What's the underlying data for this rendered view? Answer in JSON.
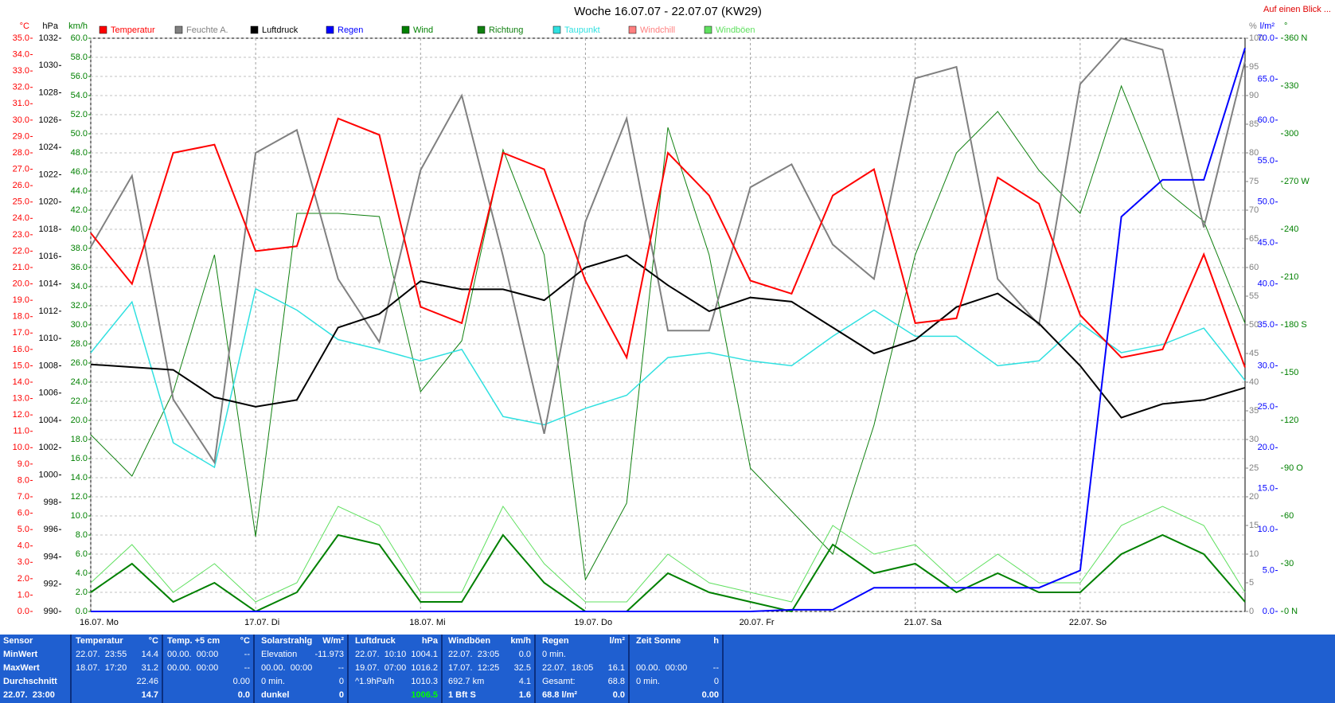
{
  "chart_data": {
    "type": "line",
    "title": "Woche 16.07.07 - 22.07.07 (KW29)",
    "link": "Auf einen Blick ...",
    "xlim": [
      0,
      168
    ],
    "xticks": [
      {
        "value": 0,
        "label": "16.07. Mo"
      },
      {
        "value": 24,
        "label": "17.07. Di"
      },
      {
        "value": 48,
        "label": "18.07. Mi"
      },
      {
        "value": 72,
        "label": "19.07. Do"
      },
      {
        "value": 96,
        "label": "20.07. Fr"
      },
      {
        "value": 120,
        "label": "21.07. Sa"
      },
      {
        "value": 144,
        "label": "22.07. So"
      }
    ],
    "x": [
      0,
      6,
      12,
      18,
      24,
      30,
      36,
      42,
      48,
      54,
      60,
      66,
      72,
      78,
      84,
      90,
      96,
      102,
      108,
      114,
      120,
      126,
      132,
      138,
      144,
      150,
      156,
      162,
      168
    ],
    "grid": true,
    "axes": [
      {
        "unit": "°C",
        "color": "#ff0000",
        "lim": [
          0,
          35
        ],
        "ticks": [
          {
            "value": 0,
            "label": "0.0"
          },
          {
            "value": 1,
            "label": "1.0"
          },
          {
            "value": 2,
            "label": "2.0"
          },
          {
            "value": 3,
            "label": "3.0"
          },
          {
            "value": 4,
            "label": "4.0"
          },
          {
            "value": 5,
            "label": "5.0"
          },
          {
            "value": 6,
            "label": "6.0"
          },
          {
            "value": 7,
            "label": "7.0"
          },
          {
            "value": 8,
            "label": "8.0"
          },
          {
            "value": 9,
            "label": "9.0"
          },
          {
            "value": 10,
            "label": "10.0"
          },
          {
            "value": 11,
            "label": "11.0"
          },
          {
            "value": 12,
            "label": "12.0"
          },
          {
            "value": 13,
            "label": "13.0"
          },
          {
            "value": 14,
            "label": "14.0"
          },
          {
            "value": 15,
            "label": "15.0"
          },
          {
            "value": 16,
            "label": "16.0"
          },
          {
            "value": 17,
            "label": "17.0"
          },
          {
            "value": 18,
            "label": "18.0"
          },
          {
            "value": 19,
            "label": "19.0"
          },
          {
            "value": 20,
            "label": "20.0"
          },
          {
            "value": 21,
            "label": "21.0"
          },
          {
            "value": 22,
            "label": "22.0"
          },
          {
            "value": 23,
            "label": "23.0"
          },
          {
            "value": 24,
            "label": "24.0"
          },
          {
            "value": 25,
            "label": "25.0"
          },
          {
            "value": 26,
            "label": "26.0"
          },
          {
            "value": 27,
            "label": "27.0"
          },
          {
            "value": 28,
            "label": "28.0"
          },
          {
            "value": 29,
            "label": "29.0"
          },
          {
            "value": 30,
            "label": "30.0"
          },
          {
            "value": 31,
            "label": "31.0"
          },
          {
            "value": 32,
            "label": "32.0"
          },
          {
            "value": 33,
            "label": "33.0"
          },
          {
            "value": 34,
            "label": "34.0"
          },
          {
            "value": 35,
            "label": "35.0"
          }
        ]
      },
      {
        "unit": "hPa",
        "color": "#000000",
        "lim": [
          990,
          1032
        ],
        "ticks": [
          990,
          992,
          994,
          996,
          998,
          1000,
          1002,
          1004,
          1006,
          1008,
          1010,
          1012,
          1014,
          1016,
          1018,
          1020,
          1022,
          1024,
          1026,
          1028,
          1030,
          1032
        ]
      },
      {
        "unit": "km/h",
        "color": "#008000",
        "lim": [
          0,
          60
        ],
        "ticks": [
          {
            "value": 0,
            "label": "0.0"
          },
          {
            "value": 2,
            "label": "2.0"
          },
          {
            "value": 4,
            "label": "4.0"
          },
          {
            "value": 6,
            "label": "6.0"
          },
          {
            "value": 8,
            "label": "8.0"
          },
          {
            "value": 10,
            "label": "10.0"
          },
          {
            "value": 12,
            "label": "12.0"
          },
          {
            "value": 14,
            "label": "14.0"
          },
          {
            "value": 16,
            "label": "16.0"
          },
          {
            "value": 18,
            "label": "18.0"
          },
          {
            "value": 20,
            "label": "20.0"
          },
          {
            "value": 22,
            "label": "22.0"
          },
          {
            "value": 24,
            "label": "24.0"
          },
          {
            "value": 26,
            "label": "26.0"
          },
          {
            "value": 28,
            "label": "28.0"
          },
          {
            "value": 30,
            "label": "30.0"
          },
          {
            "value": 32,
            "label": "32.0"
          },
          {
            "value": 34,
            "label": "34.0"
          },
          {
            "value": 36,
            "label": "36.0"
          },
          {
            "value": 38,
            "label": "38.0"
          },
          {
            "value": 40,
            "label": "40.0"
          },
          {
            "value": 42,
            "label": "42.0"
          },
          {
            "value": 44,
            "label": "44.0"
          },
          {
            "value": 46,
            "label": "46.0"
          },
          {
            "value": 48,
            "label": "48.0"
          },
          {
            "value": 50,
            "label": "50.0"
          },
          {
            "value": 52,
            "label": "52.0"
          },
          {
            "value": 54,
            "label": "54.0"
          },
          {
            "value": 56,
            "label": "56.0"
          },
          {
            "value": 58,
            "label": "58.0"
          },
          {
            "value": 60,
            "label": "60.0"
          }
        ]
      },
      {
        "unit": "%",
        "color": "#808080",
        "lim": [
          0,
          100
        ],
        "ticks": [
          0,
          5,
          10,
          15,
          20,
          25,
          30,
          35,
          40,
          45,
          50,
          55,
          60,
          65,
          70,
          75,
          80,
          85,
          90,
          95,
          100
        ]
      },
      {
        "unit": "l/m²",
        "color": "#0000ff",
        "lim": [
          0,
          70
        ],
        "ticks": [
          {
            "value": 0,
            "label": "0.0"
          },
          {
            "value": 5,
            "label": "5.0"
          },
          {
            "value": 10,
            "label": "10.0"
          },
          {
            "value": 15,
            "label": "15.0"
          },
          {
            "value": 20,
            "label": "20.0"
          },
          {
            "value": 25,
            "label": "25.0"
          },
          {
            "value": 30,
            "label": "30.0"
          },
          {
            "value": 35,
            "label": "35.0"
          },
          {
            "value": 40,
            "label": "40.0"
          },
          {
            "value": 45,
            "label": "45.0"
          },
          {
            "value": 50,
            "label": "50.0"
          },
          {
            "value": 55,
            "label": "55.0"
          },
          {
            "value": 60,
            "label": "60.0"
          },
          {
            "value": 65,
            "label": "65.0"
          },
          {
            "value": 70,
            "label": "70.0"
          }
        ]
      },
      {
        "unit": "°",
        "color": "#008000",
        "lim": [
          0,
          360
        ],
        "ticks": [
          {
            "value": 0,
            "label": "0 N"
          },
          30,
          60,
          {
            "value": 90,
            "label": "90 O"
          },
          120,
          150,
          {
            "value": 180,
            "label": "180 S"
          },
          210,
          240,
          {
            "value": 270,
            "label": "270 W"
          },
          300,
          330,
          {
            "value": 360,
            "label": "360 N"
          }
        ]
      }
    ],
    "series": [
      {
        "name": "Temperatur",
        "color": "#ff0000",
        "axis": 0,
        "width": 2,
        "values": [
          23.1,
          20.0,
          28.0,
          28.5,
          22.0,
          22.3,
          30.1,
          29.1,
          18.6,
          17.6,
          28.0,
          27.0,
          20.2,
          15.5,
          28.0,
          25.4,
          20.2,
          19.4,
          25.4,
          27.0,
          17.6,
          17.9,
          26.5,
          24.9,
          18.1,
          15.5,
          16.0,
          21.8,
          14.9
        ]
      },
      {
        "name": "Feuchte A.",
        "color": "#808080",
        "axis": 3,
        "width": 2,
        "values": [
          63.6,
          76,
          37,
          26,
          80,
          84,
          58,
          47,
          77,
          90,
          62,
          31,
          68,
          86,
          49,
          49,
          74,
          78,
          64,
          58,
          93,
          95,
          58,
          50,
          92,
          100,
          98,
          67,
          96
        ]
      },
      {
        "name": "Luftdruck",
        "color": "#000000",
        "axis": 1,
        "width": 2,
        "values": [
          1008.1,
          1007.9,
          1007.7,
          1005.7,
          1005.0,
          1005.5,
          1010.8,
          1011.8,
          1014.2,
          1013.6,
          1013.6,
          1012.8,
          1015.2,
          1016.1,
          1013.9,
          1012.0,
          1013.0,
          1012.7,
          1010.8,
          1008.9,
          1009.9,
          1012.3,
          1013.3,
          1011.1,
          1008.0,
          1004.2,
          1005.2,
          1005.5,
          1006.4
        ]
      },
      {
        "name": "Regen",
        "color": "#0000ff",
        "axis": 4,
        "width": 2,
        "values": [
          0,
          0,
          0,
          0,
          0,
          0,
          0,
          0,
          0,
          0,
          0,
          0,
          0,
          0,
          0,
          0,
          0,
          0.2,
          0.2,
          2.9,
          2.9,
          2.9,
          2.9,
          2.9,
          5.0,
          48.2,
          52.7,
          52.7,
          68.8
        ]
      },
      {
        "name": "Wind",
        "color": "#008000",
        "axis": 2,
        "width": 2,
        "values": [
          2,
          5,
          1,
          3,
          0,
          2,
          8,
          7,
          1,
          1,
          8,
          3,
          0,
          0,
          4,
          2,
          1,
          0,
          7,
          4,
          5,
          2,
          4,
          2,
          2,
          6,
          8,
          6,
          1
        ]
      },
      {
        "name": "Richtung",
        "color": "#108010",
        "axis": 5,
        "width": 1,
        "values": [
          111,
          85,
          138,
          224,
          47,
          250,
          250,
          248,
          138,
          170,
          290,
          224,
          20,
          68,
          304,
          224,
          90,
          63,
          36,
          117,
          224,
          288,
          314,
          277,
          250,
          330,
          266,
          245,
          181
        ]
      },
      {
        "name": "Taupunkt",
        "color": "#30e0e0",
        "axis": 0,
        "width": 1.5,
        "values": [
          15.8,
          18.9,
          10.3,
          8.8,
          19.7,
          18.4,
          16.6,
          16.0,
          15.3,
          16.0,
          11.9,
          11.4,
          12.4,
          13.2,
          15.5,
          15.8,
          15.3,
          15.0,
          16.8,
          18.4,
          16.8,
          16.8,
          15.0,
          15.3,
          17.6,
          15.8,
          16.3,
          17.3,
          14.1
        ]
      },
      {
        "name": "Windchill",
        "color": "#ff8080",
        "axis": 0,
        "width": 1,
        "values": [
          23.1,
          20.0,
          28.0,
          28.5,
          22.0,
          22.3,
          30.1,
          29.1,
          18.6,
          17.6,
          28.0,
          27.0,
          20.2,
          15.5,
          28.0,
          25.4,
          20.2,
          19.4,
          25.4,
          27.0,
          17.6,
          17.9,
          26.5,
          24.9,
          18.1,
          15.5,
          16.0,
          21.8,
          14.9
        ]
      },
      {
        "name": "Windböen",
        "color": "#60e060",
        "axis": 2,
        "width": 1,
        "values": [
          3,
          7,
          2,
          5,
          1,
          3,
          11,
          9,
          2,
          2,
          11,
          5,
          1,
          1,
          6,
          3,
          2,
          1,
          9,
          6,
          7,
          3,
          6,
          3,
          3,
          9,
          11,
          9,
          2
        ]
      }
    ]
  },
  "table": {
    "sensor": {
      "name": "Sensor",
      "rows": [
        "MinWert",
        "MaxWert",
        "Durchschnitt",
        "22.07.  23:00"
      ]
    },
    "columns": [
      {
        "name": "Temperatur",
        "unit": "°C",
        "cells": [
          {
            "label": "22.07.  23:55",
            "value": "14.4"
          },
          {
            "label": "18.07.  17:20",
            "value": "31.2"
          },
          {
            "value": "22.46"
          },
          {
            "value": "14.7"
          }
        ]
      },
      {
        "name": "Temp. +5 cm",
        "unit": "°C",
        "cells": [
          {
            "label": "00.00.  00:00",
            "value": "--"
          },
          {
            "label": "00.00.  00:00",
            "value": "--"
          },
          {
            "value": "0.00"
          },
          {
            "value": "0.0"
          }
        ]
      },
      {
        "name": "Solarstrahlg",
        "unit": "W/m²",
        "cells": [
          {
            "label": "Elevation",
            "value": "-11.973"
          },
          {
            "label": "00.00.  00:00",
            "value": "--"
          },
          {
            "label": "0 min.",
            "value": "0"
          },
          {
            "label": "dunkel",
            "value": "0"
          }
        ]
      },
      {
        "name": "Luftdruck",
        "unit": "hPa",
        "cells": [
          {
            "label": "22.07.  10:10",
            "value": "1004.1"
          },
          {
            "label": "19.07.  07:00",
            "value": "1016.2"
          },
          {
            "label": "^1.9hPa/h",
            "value": "1010.3"
          },
          {
            "value": "1006.5",
            "color": "#00ff00"
          }
        ]
      },
      {
        "name": "Windböen",
        "unit": "km/h",
        "cells": [
          {
            "label": "22.07.  23:05",
            "value": "0.0"
          },
          {
            "label": "17.07.  12:25",
            "value": "32.5"
          },
          {
            "label": "692.7 km",
            "value": "4.1"
          },
          {
            "label": "1 Bft S",
            "value": "1.6"
          }
        ]
      },
      {
        "name": "Regen",
        "unit": "l/m²",
        "cells": [
          {
            "label": "0 min."
          },
          {
            "label": "22.07.  18:05",
            "value": "16.1"
          },
          {
            "label": "Gesamt:",
            "value": "68.8"
          },
          {
            "label": "68.8 l/m²",
            "value": "0.0"
          }
        ]
      },
      {
        "name": "Zeit Sonne",
        "unit": "h",
        "cells": [
          {},
          {
            "label": "00.00.  00:00",
            "value": "--"
          },
          {
            "label": "0 min.",
            "value": "0"
          },
          {
            "value": "0.00"
          }
        ]
      }
    ]
  }
}
